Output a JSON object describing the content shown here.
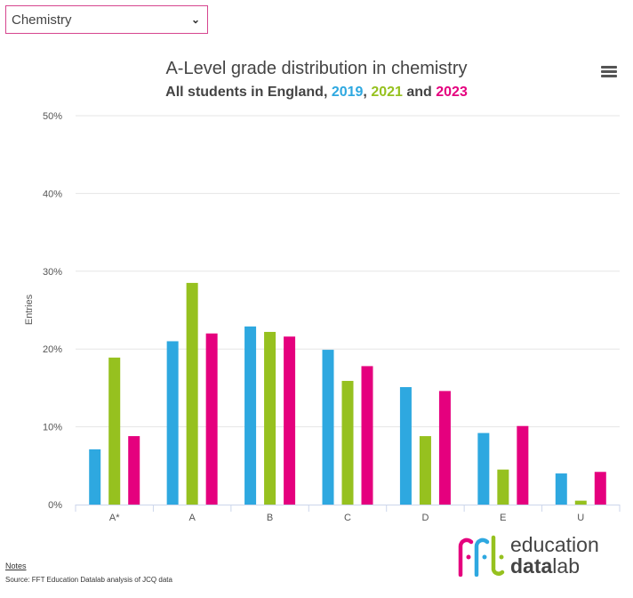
{
  "selector": {
    "value": "Chemistry"
  },
  "chart_data": {
    "type": "bar",
    "title": "A-Level grade distribution in chemistry",
    "subtitle_parts": [
      {
        "text": "All students in England, ",
        "color": "#444444"
      },
      {
        "text": "2019",
        "color": "#2ea8e0"
      },
      {
        "text": ", ",
        "color": "#444444"
      },
      {
        "text": "2021",
        "color": "#96c11f"
      },
      {
        "text": " and ",
        "color": "#444444"
      },
      {
        "text": "2023",
        "color": "#e5007e"
      }
    ],
    "xlabel": "",
    "ylabel": "Entries",
    "ylim": [
      0,
      50
    ],
    "yticks": [
      0,
      10,
      20,
      30,
      40,
      50
    ],
    "ytick_labels": [
      "0%",
      "10%",
      "20%",
      "30%",
      "40%",
      "50%"
    ],
    "grid": true,
    "categories": [
      "A*",
      "A",
      "B",
      "C",
      "D",
      "E",
      "U"
    ],
    "series": [
      {
        "name": "2019",
        "color": "#2ea8e0",
        "values": [
          7.1,
          21.0,
          22.9,
          19.9,
          15.1,
          9.2,
          4.0
        ]
      },
      {
        "name": "2021",
        "color": "#96c11f",
        "values": [
          18.9,
          28.5,
          22.2,
          15.9,
          8.8,
          4.5,
          0.5
        ]
      },
      {
        "name": "2023",
        "color": "#e5007e",
        "values": [
          8.8,
          22.0,
          21.6,
          17.8,
          14.6,
          10.1,
          4.2
        ]
      }
    ]
  },
  "footer": {
    "notes": "Notes",
    "source": "Source: FFT Education Datalab analysis of JCQ data"
  },
  "logo": {
    "text1": "education",
    "text2a": "data",
    "text2b": "lab",
    "mark": "fft"
  }
}
